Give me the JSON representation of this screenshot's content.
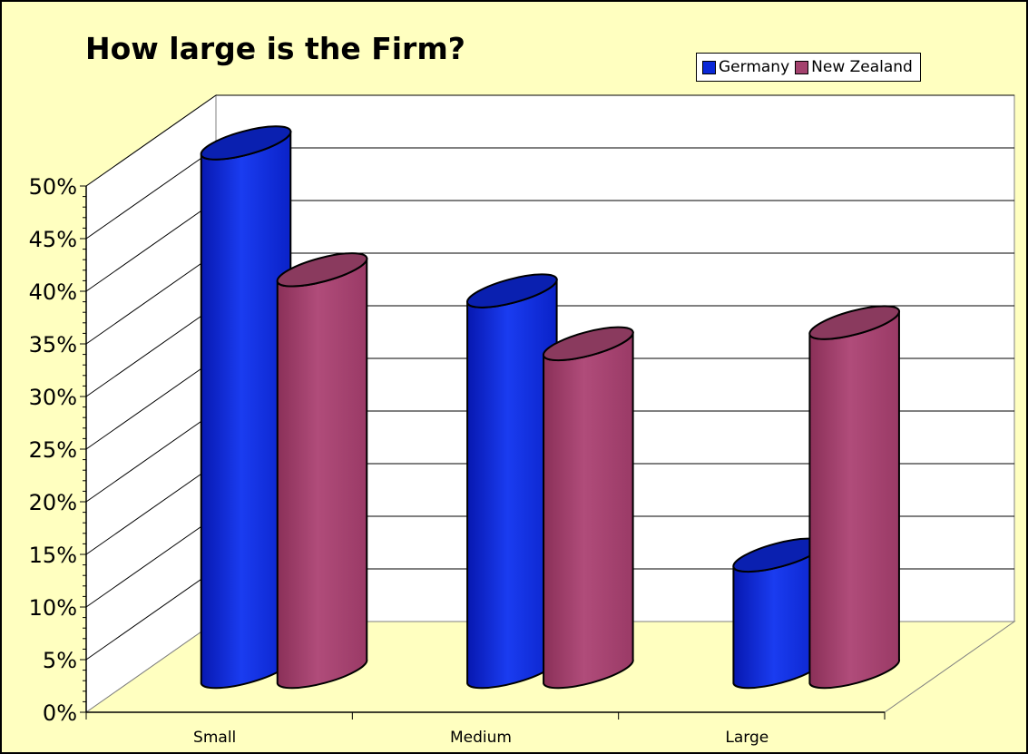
{
  "chart_data": {
    "type": "bar",
    "title": "How large is the Firm?",
    "categories": [
      "Small",
      "Medium",
      "Large"
    ],
    "series": [
      {
        "name": "Germany",
        "color": "#0a28d8",
        "values": [
          50,
          36,
          11
        ]
      },
      {
        "name": "New Zealand",
        "color": "#a4426e",
        "values": [
          38,
          31,
          33
        ]
      }
    ],
    "ylim": [
      0,
      50
    ],
    "ytick_step": 5,
    "ytick_labels": [
      "0%",
      "5%",
      "10%",
      "15%",
      "20%",
      "25%",
      "30%",
      "35%",
      "40%",
      "45%",
      "50%"
    ],
    "grid": true,
    "legend_position": "top-right",
    "shape": "cylinder"
  }
}
